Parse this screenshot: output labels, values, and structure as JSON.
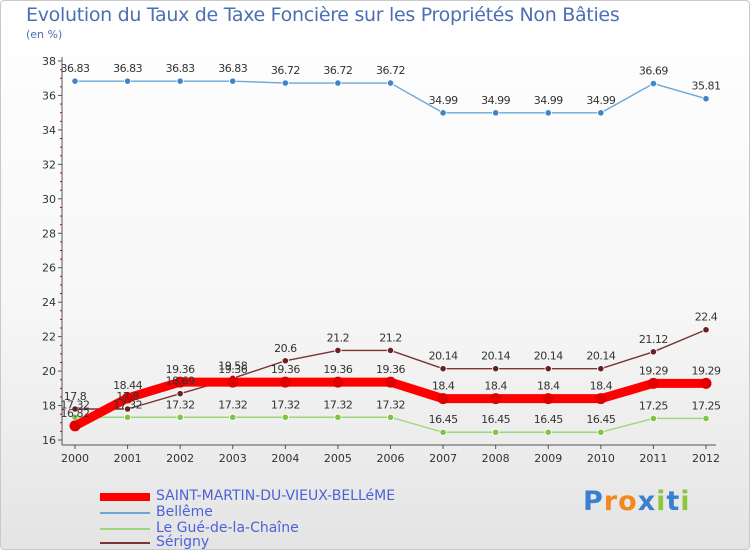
{
  "title": "Evolution du Taux de Taxe Foncière sur les Propriétés Non Bâties",
  "subtitle": "(en %)",
  "chart_data": {
    "type": "line",
    "title": "Evolution du Taux de Taxe Foncière sur les Propriétés Non Bâties",
    "ylabel": "(en %)",
    "xlabel": "",
    "ylim": [
      16,
      38
    ],
    "yticks": [
      "16",
      "18",
      "20",
      "22",
      "24",
      "26",
      "28",
      "30",
      "32",
      "34",
      "36",
      "38"
    ],
    "categories": [
      "2000",
      "2001",
      "2002",
      "2003",
      "2004",
      "2005",
      "2006",
      "2007",
      "2008",
      "2009",
      "2010",
      "2011",
      "2012"
    ],
    "series": [
      {
        "name": "Bellême",
        "color": "#6aa7d8",
        "marker": "#3e86c9",
        "values": [
          36.83,
          36.83,
          36.83,
          36.83,
          36.72,
          36.72,
          36.72,
          34.99,
          34.99,
          34.99,
          34.99,
          36.69,
          35.81
        ],
        "labels": [
          "36.83",
          "36.83",
          "36.83",
          "36.83",
          "36.72",
          "36.72",
          "36.72",
          "34.99",
          "34.99",
          "34.99",
          "34.99",
          "36.69",
          "35.81"
        ]
      },
      {
        "name": "Sérigny",
        "color": "#7a3434",
        "marker": "#6b1f22",
        "values": [
          17.8,
          17.8,
          18.69,
          19.58,
          20.6,
          21.2,
          21.2,
          20.14,
          20.14,
          20.14,
          20.14,
          21.12,
          22.4
        ],
        "labels": [
          "17.8",
          "17.8",
          "18.69",
          "19.58",
          "20.6",
          "21.2",
          "21.2",
          "20.14",
          "20.14",
          "20.14",
          "20.14",
          "21.12",
          "22.4"
        ]
      },
      {
        "name": "Le Gué-de-la-Chaîne",
        "color": "#9cd67b",
        "marker": "#7cc545",
        "values": [
          17.32,
          17.32,
          17.32,
          17.32,
          17.32,
          17.32,
          17.32,
          16.45,
          16.45,
          16.45,
          16.45,
          17.25,
          17.25
        ],
        "labels": [
          "17.32",
          "17.32",
          "17.32",
          "17.32",
          "17.32",
          "17.32",
          "17.32",
          "16.45",
          "16.45",
          "16.45",
          "16.45",
          "17.25",
          "17.25"
        ]
      },
      {
        "name": "SAINT-MARTIN-DU-VIEUX-BELLéME",
        "color": "#ff0000",
        "marker": "#e00000",
        "values": [
          16.82,
          18.44,
          19.36,
          19.36,
          19.36,
          19.36,
          19.36,
          18.4,
          18.4,
          18.4,
          18.4,
          19.29,
          19.29
        ],
        "labels": [
          "16.82",
          "18.44",
          "19.36",
          "19.36",
          "19.36",
          "19.36",
          "19.36",
          "18.4",
          "18.4",
          "18.4",
          "18.4",
          "19.29",
          "19.29"
        ]
      }
    ]
  },
  "legend": [
    {
      "label": "SAINT-MARTIN-DU-VIEUX-BELLéME",
      "color": "#ff0000"
    },
    {
      "label": "Bellême",
      "color": "#6aa7d8"
    },
    {
      "label": "Le Gué-de-la-Chaîne",
      "color": "#9cd67b"
    },
    {
      "label": "Sérigny",
      "color": "#7a3434"
    }
  ],
  "logo": {
    "letters": [
      "P",
      "r",
      "o",
      "x",
      "i",
      "t",
      "i"
    ],
    "colors": [
      "#3b7fd0",
      "#f08a1e",
      "#f08a1e",
      "#3b7fd0",
      "#8cc63e",
      "#3b7fd0",
      "#8cc63e"
    ]
  }
}
